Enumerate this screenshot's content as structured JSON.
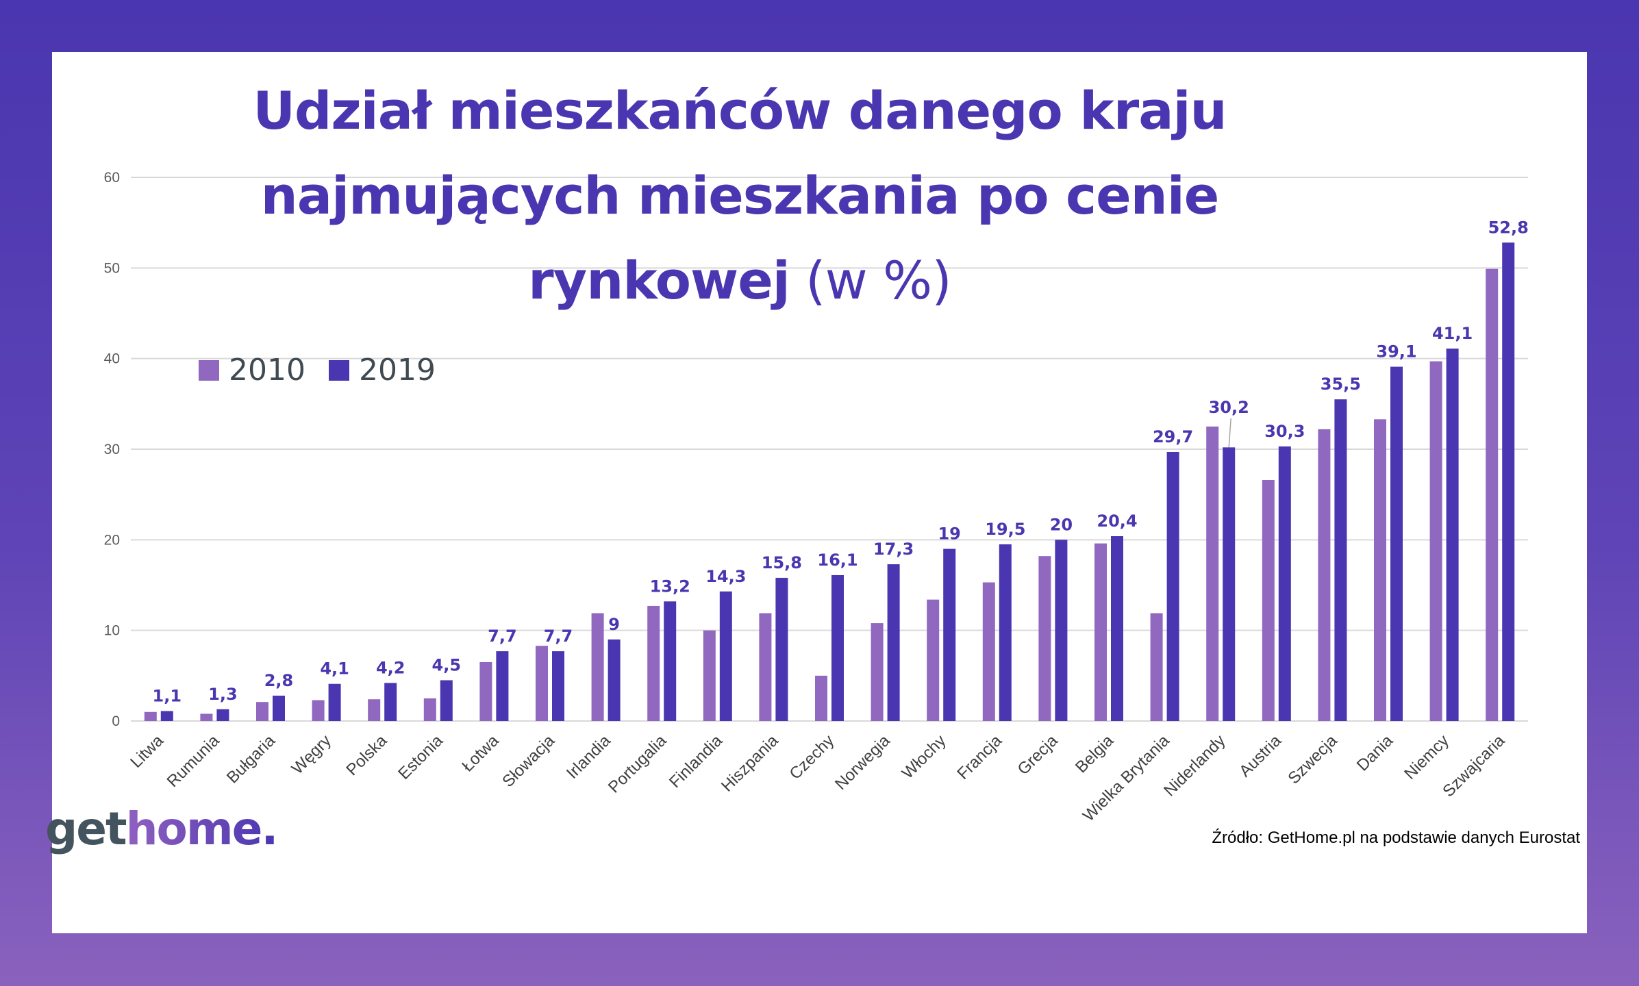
{
  "title": {
    "line1": "Udział mieszkańców danego kraju",
    "line2": "najmujących mieszkania po cenie",
    "line3_bold": "rynkowej",
    "line3_light": " (w %)"
  },
  "colors": {
    "series_2010": "#9068c0",
    "series_2019": "#4a36b0",
    "frame_top": "#4a36b0",
    "frame_bottom": "#8a62bd"
  },
  "logo": {
    "part1": "get",
    "part2": "home."
  },
  "source": "Źródło: GetHome.pl na podstawie danych Eurostat",
  "chart_data": {
    "type": "bar",
    "title": "Udział mieszkańców danego kraju najmujących mieszkania po cenie rynkowej (w %)",
    "categories": [
      "Litwa",
      "Rumunia",
      "Bułgaria",
      "Węgry",
      "Polska",
      "Estonia",
      "Łotwa",
      "Słowacja",
      "Irlandia",
      "Portugalia",
      "Finlandia",
      "Hiszpania",
      "Czechy",
      "Norwegia",
      "Włochy",
      "Francja",
      "Grecja",
      "Belgia",
      "Wielka Brytania",
      "Niderlandy",
      "Austria",
      "Szwecja",
      "Dania",
      "Niemcy",
      "Szwajcaria"
    ],
    "series": [
      {
        "name": "2010",
        "values": [
          1.0,
          0.8,
          2.1,
          2.3,
          2.4,
          2.5,
          6.5,
          8.3,
          11.9,
          12.7,
          10.0,
          11.9,
          5.0,
          10.8,
          13.4,
          15.3,
          18.2,
          19.6,
          11.9,
          32.5,
          26.6,
          32.2,
          33.3,
          39.7,
          49.9
        ]
      },
      {
        "name": "2019",
        "values": [
          1.1,
          1.3,
          2.8,
          4.1,
          4.2,
          4.5,
          7.7,
          7.7,
          9,
          13.2,
          14.3,
          15.8,
          16.1,
          17.3,
          19,
          19.5,
          20,
          20.4,
          29.7,
          30.2,
          30.3,
          35.5,
          39.1,
          41.1,
          52.8
        ],
        "labels": [
          "1,1",
          "1,3",
          "2,8",
          "4,1",
          "4,2",
          "4,5",
          "7,7",
          "7,7",
          "9",
          "13,2",
          "14,3",
          "15,8",
          "16,1",
          "17,3",
          "19",
          "19,5",
          "20",
          "20,4",
          "29,7",
          "30,2",
          "30,3",
          "35,5",
          "39,1",
          "41,1",
          "52,8"
        ]
      }
    ],
    "ylim": [
      0,
      60
    ],
    "yticks": [
      "0",
      "10",
      "20",
      "30",
      "40",
      "50",
      "60"
    ],
    "grid": true,
    "legend": "top-left",
    "xlabel": "",
    "ylabel": ""
  }
}
